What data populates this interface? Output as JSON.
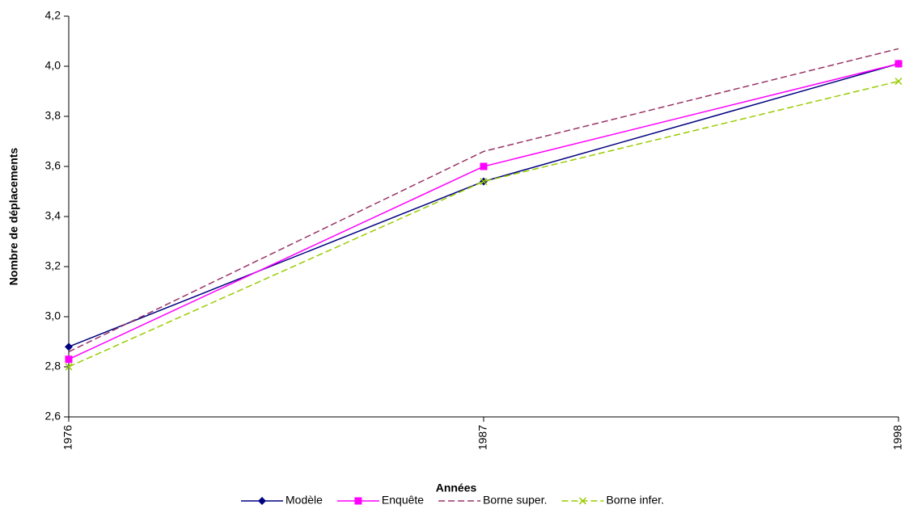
{
  "chart_data": {
    "type": "line",
    "x_label": "Années",
    "y_label": "Nombre de déplacements",
    "categories": [
      "1976",
      "1987",
      "1998"
    ],
    "series": [
      {
        "name": "Modèle",
        "color": "#000080",
        "marker": "diamond",
        "dash": false,
        "values": [
          2.88,
          3.54,
          4.01
        ]
      },
      {
        "name": "Enquête",
        "color": "#ff00ff",
        "marker": "square",
        "dash": false,
        "values": [
          2.83,
          3.6,
          4.01
        ]
      },
      {
        "name": "Borne super.",
        "color": "#993366",
        "marker": null,
        "dash": true,
        "values": [
          2.86,
          3.66,
          4.07
        ]
      },
      {
        "name": "Borne infer.",
        "color": "#99cc00",
        "marker": "x",
        "dash": true,
        "values": [
          2.8,
          3.54,
          3.94
        ]
      }
    ],
    "ylim": [
      2.6,
      4.2
    ],
    "yticks": [
      {
        "value": 2.6,
        "label": "2,6"
      },
      {
        "value": 2.8,
        "label": "2,8"
      },
      {
        "value": 3.0,
        "label": "3,0"
      },
      {
        "value": 3.2,
        "label": "3,2"
      },
      {
        "value": 3.4,
        "label": "3,4"
      },
      {
        "value": 3.6,
        "label": "3,6"
      },
      {
        "value": 3.8,
        "label": "3,8"
      },
      {
        "value": 4.0,
        "label": "4,0"
      },
      {
        "value": 4.2,
        "label": "4,2"
      }
    ],
    "grid": false,
    "legend": "bottom"
  }
}
